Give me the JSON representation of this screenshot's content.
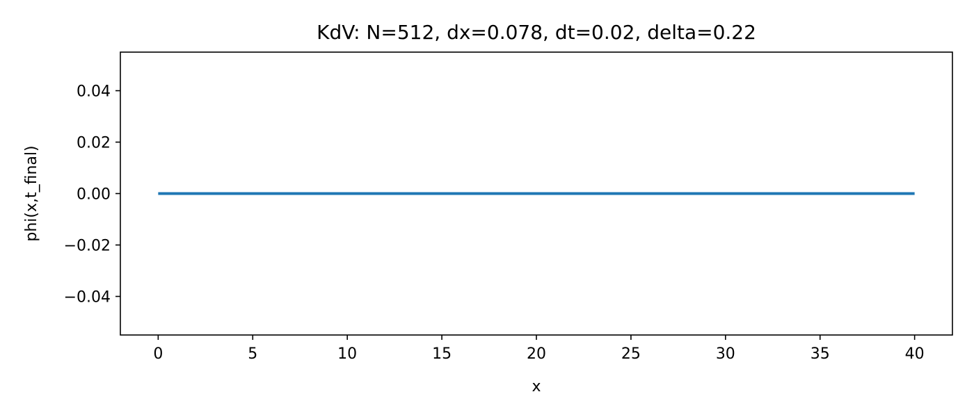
{
  "chart_data": {
    "type": "line",
    "title": "KdV: N=512, dx=0.078, dt=0.02, delta=0.22",
    "xlabel": "x",
    "ylabel": "phi(x,t_final)",
    "xlim": [
      -2,
      42
    ],
    "ylim": [
      -0.055,
      0.055
    ],
    "xticks": [
      0,
      5,
      10,
      15,
      20,
      25,
      30,
      35,
      40
    ],
    "xtick_labels": [
      "0",
      "5",
      "10",
      "15",
      "20",
      "25",
      "30",
      "35",
      "40"
    ],
    "yticks": [
      0.04,
      0.02,
      0.0,
      -0.02,
      -0.04
    ],
    "ytick_labels": [
      "0.04",
      "0.02",
      "0.00",
      "−0.02",
      "−0.04"
    ],
    "grid": false,
    "series": [
      {
        "color": "#1f77b4",
        "x": [
          0,
          40
        ],
        "y": [
          0.0,
          0.0
        ]
      }
    ]
  }
}
